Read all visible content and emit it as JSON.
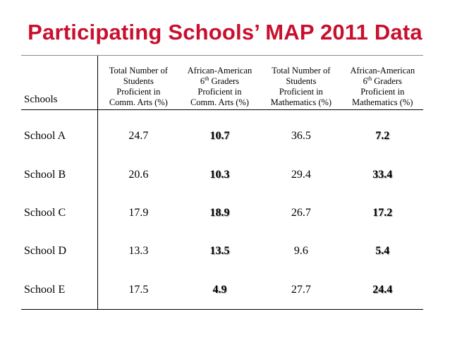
{
  "slide": {
    "title": "Participating Schools’ MAP 2011 Data"
  },
  "table": {
    "headers": {
      "school": "Schools",
      "total_ca": [
        "Total Number of",
        "Students",
        "Proficient in",
        "Comm. Arts (%)"
      ],
      "aa_ca": [
        "African-American",
        "6",
        "th",
        " Graders",
        "Proficient in",
        "Comm. Arts (%)"
      ],
      "total_math": [
        "Total Number of",
        "Students",
        "Proficient in",
        "Mathematics (%)"
      ],
      "aa_math": [
        "African-American",
        "6",
        "th",
        " Graders",
        "Proficient in",
        "Mathematics (%)"
      ]
    },
    "rows": [
      {
        "school": "School A",
        "total_ca": "24.7",
        "aa_ca": "10.7",
        "total_math": "36.5",
        "aa_math": "7.2"
      },
      {
        "school": "School B",
        "total_ca": "20.6",
        "aa_ca": "10.3",
        "total_math": "29.4",
        "aa_math": "33.4"
      },
      {
        "school": "School C",
        "total_ca": "17.9",
        "aa_ca": "18.9",
        "total_math": "26.7",
        "aa_math": "17.2"
      },
      {
        "school": "School D",
        "total_ca": "13.3",
        "aa_ca": "13.5",
        "total_math": "9.6",
        "aa_math": "5.4"
      },
      {
        "school": "School E",
        "total_ca": "17.5",
        "aa_ca": "4.9",
        "total_math": "27.7",
        "aa_math": "24.4"
      }
    ]
  },
  "colors": {
    "title": "#c8102e",
    "rule": "#8a8a8a",
    "text": "#000000"
  }
}
